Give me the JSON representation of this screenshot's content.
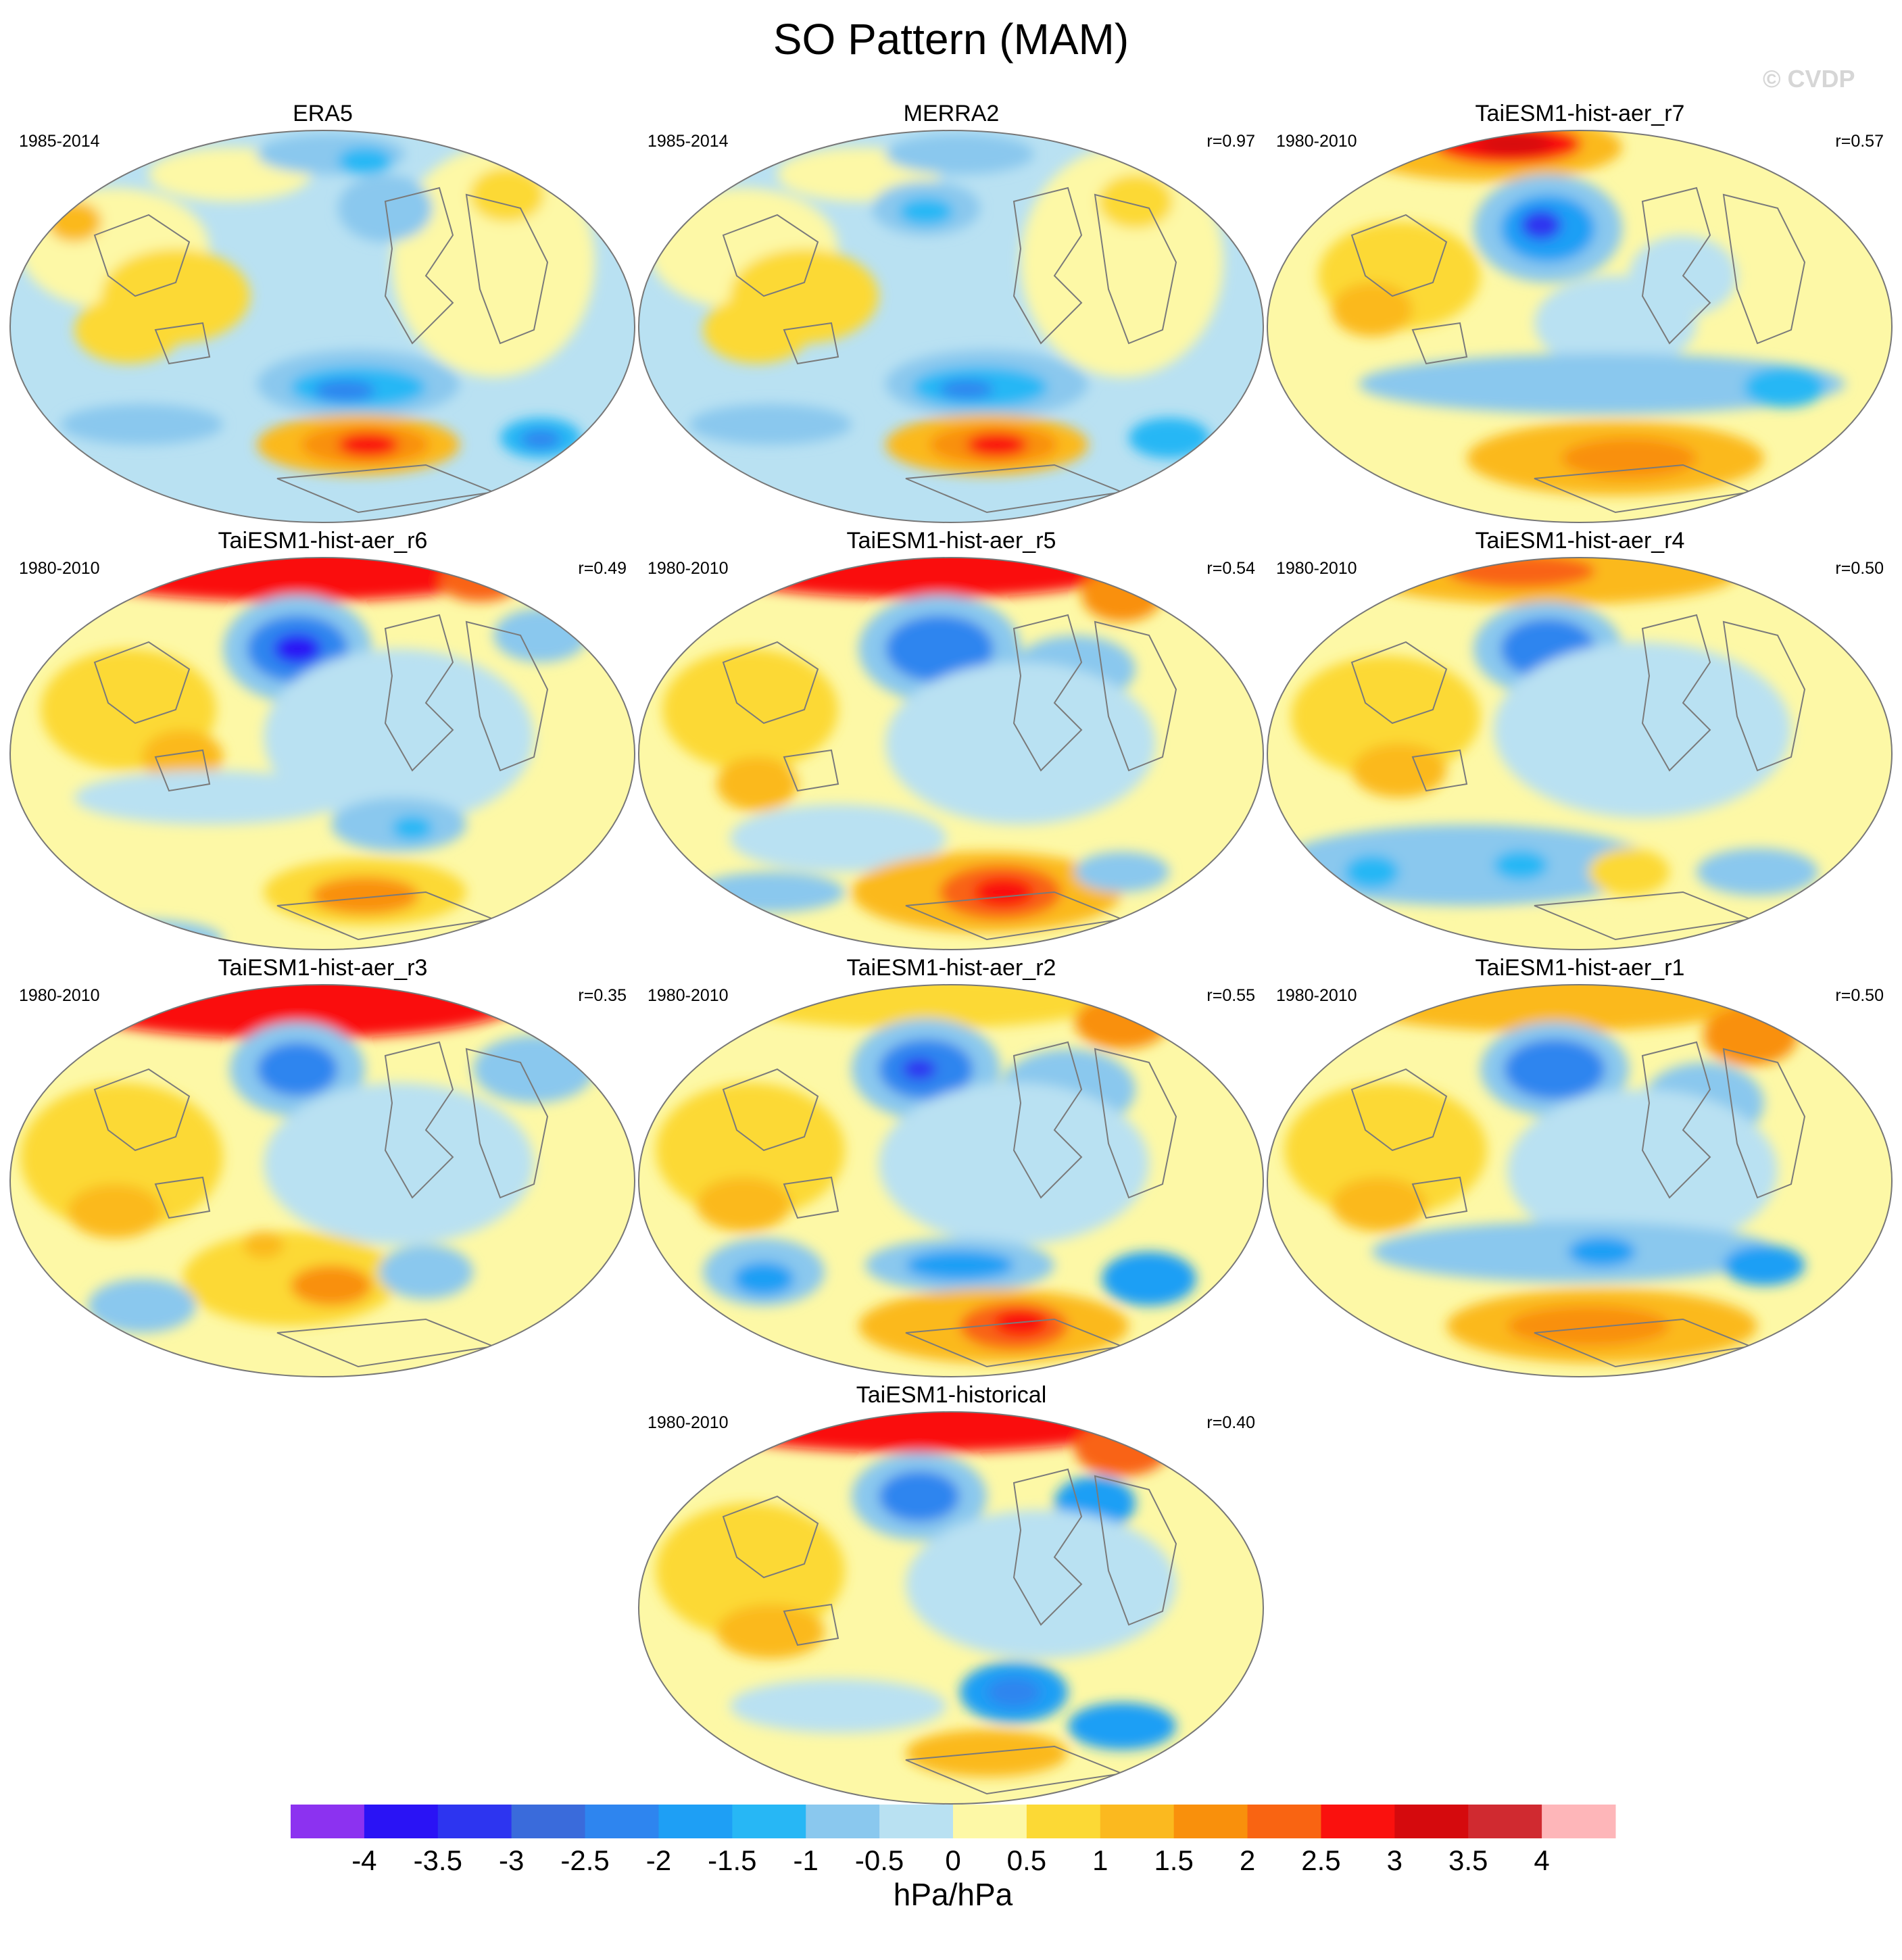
{
  "figure": {
    "title": "SO Pattern (MAM)",
    "watermark": "© CVDP"
  },
  "chart_data": {
    "type": "heatmap",
    "title": "SO Pattern (MAM)",
    "projection": "Hammer-Aitoff global map",
    "legend_placement": "bottom",
    "units": "hPa/hPa",
    "levels": [
      -4,
      -3.5,
      -3,
      -2.5,
      -2,
      -1.5,
      -1,
      -0.5,
      0,
      0.5,
      1,
      1.5,
      2,
      2.5,
      3,
      3.5,
      4
    ],
    "tick_labels": [
      "-4",
      "-3.5",
      "-3",
      "-2.5",
      "-2",
      "-1.5",
      "-1",
      "-0.5",
      "0",
      "0.5",
      "1",
      "1.5",
      "2",
      "2.5",
      "3",
      "3.5",
      "4"
    ],
    "colors": [
      "#8c32f0",
      "#2a13f5",
      "#2d35f0",
      "#3a6bdb",
      "#2e85ef",
      "#1e9ff5",
      "#27b7f5",
      "#8ac8ee",
      "#b9e1f2",
      "#fdf8a6",
      "#fcd935",
      "#fbb91f",
      "#f9900c",
      "#f96412",
      "#fa110e",
      "#d50a0d",
      "#d02a30",
      "#feb6b9"
    ],
    "panels": [
      {
        "name": "ERA5",
        "period": "1985-2014",
        "r": ""
      },
      {
        "name": "MERRA2",
        "period": "1985-2014",
        "r": "r=0.97"
      },
      {
        "name": "TaiESM1-hist-aer_r7",
        "period": "1980-2010",
        "r": "r=0.57"
      },
      {
        "name": "TaiESM1-hist-aer_r6",
        "period": "1980-2010",
        "r": "r=0.49"
      },
      {
        "name": "TaiESM1-hist-aer_r5",
        "period": "1980-2010",
        "r": "r=0.54"
      },
      {
        "name": "TaiESM1-hist-aer_r4",
        "period": "1980-2010",
        "r": "r=0.50"
      },
      {
        "name": "TaiESM1-hist-aer_r3",
        "period": "1980-2010",
        "r": "r=0.35"
      },
      {
        "name": "TaiESM1-hist-aer_r2",
        "period": "1980-2010",
        "r": "r=0.55"
      },
      {
        "name": "TaiESM1-hist-aer_r1",
        "period": "1980-2010",
        "r": "r=0.50"
      },
      {
        "name": "TaiESM1-historical",
        "period": "1980-2010",
        "r": "r=0.40"
      }
    ]
  }
}
